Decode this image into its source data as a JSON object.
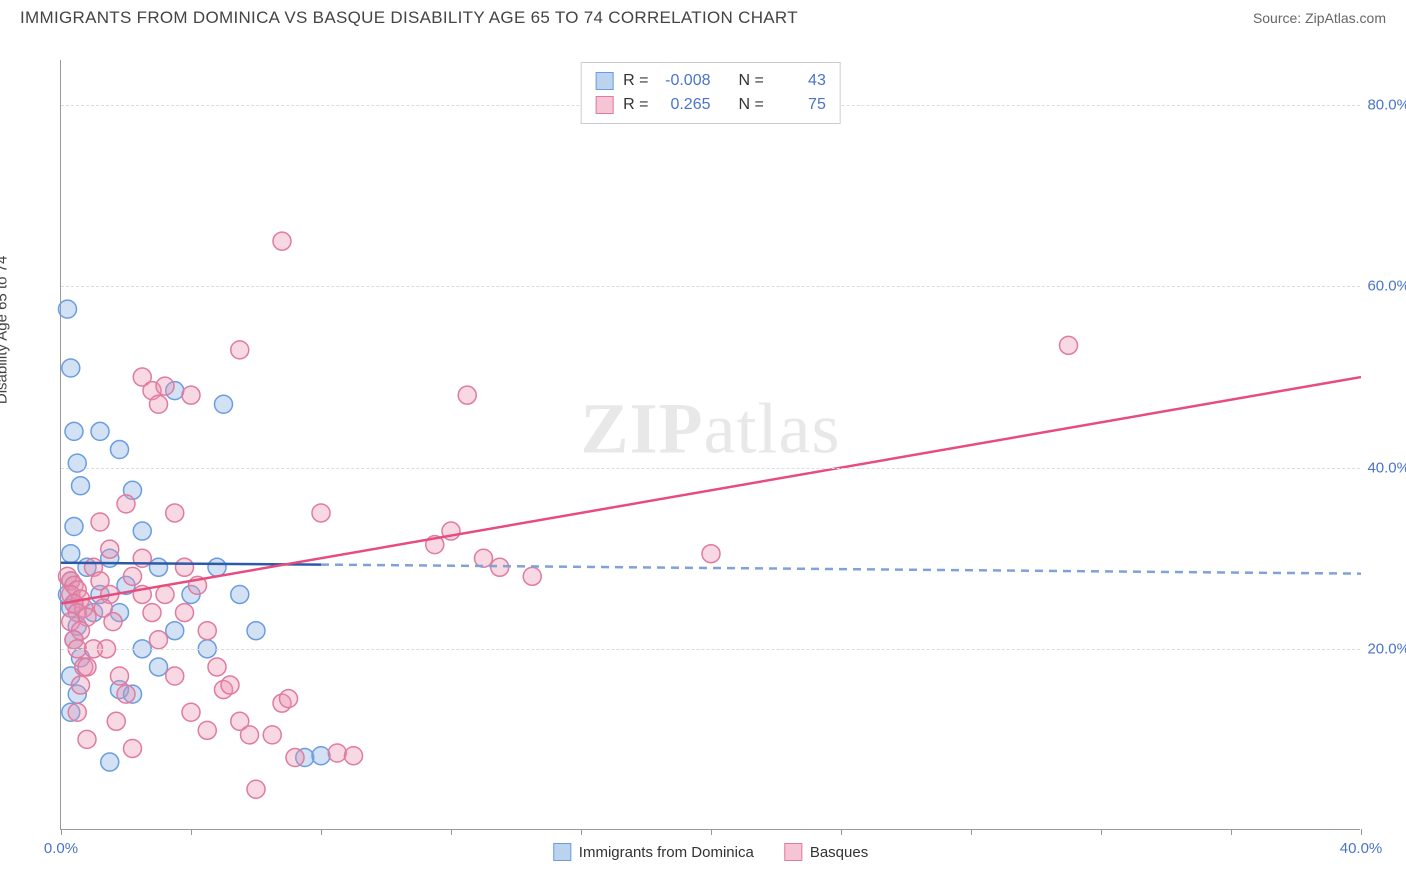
{
  "header": {
    "title": "IMMIGRANTS FROM DOMINICA VS BASQUE DISABILITY AGE 65 TO 74 CORRELATION CHART",
    "source_prefix": "Source: ",
    "source_name": "ZipAtlas.com"
  },
  "watermark": {
    "zip": "ZIP",
    "atlas": "atlas"
  },
  "chart": {
    "type": "scatter",
    "y_axis_label": "Disability Age 65 to 74",
    "xlim": [
      0,
      40
    ],
    "ylim": [
      0,
      85
    ],
    "x_ticks": [
      0,
      4,
      8,
      12,
      16,
      20,
      24,
      28,
      32,
      36,
      40
    ],
    "x_tick_labels": {
      "0": "0.0%",
      "40": "40.0%"
    },
    "y_gridlines": [
      20,
      40,
      60,
      80
    ],
    "y_tick_labels": {
      "20": "20.0%",
      "40": "40.0%",
      "60": "60.0%",
      "80": "80.0%"
    },
    "background_color": "#ffffff",
    "grid_color": "#dddddd",
    "axis_color": "#999999",
    "label_color": "#4a74c9",
    "marker_radius": 9,
    "marker_stroke_width": 1.5,
    "series": [
      {
        "name": "Immigrants from Dominica",
        "fill": "rgba(130,170,225,0.35)",
        "stroke": "#6a9de0",
        "swatch_fill": "#bcd3f0",
        "swatch_stroke": "#6a9de0",
        "R": "-0.008",
        "N": "43",
        "trend": {
          "solid": {
            "x1": 0,
            "y1": 29.5,
            "x2": 8,
            "y2": 29.3
          },
          "dashed": {
            "x1": 8,
            "y1": 29.3,
            "x2": 40,
            "y2": 28.3
          },
          "solid_color": "#2c5aa8",
          "dashed_color": "#7fa3d4",
          "width": 2.5
        },
        "points": [
          [
            0.2,
            57.5
          ],
          [
            0.3,
            51
          ],
          [
            0.4,
            44
          ],
          [
            0.5,
            40.5
          ],
          [
            0.6,
            38
          ],
          [
            0.4,
            33.5
          ],
          [
            0.3,
            30.5
          ],
          [
            0.8,
            29
          ],
          [
            0.3,
            27.5
          ],
          [
            0.2,
            26
          ],
          [
            0.4,
            25
          ],
          [
            0.3,
            24.5
          ],
          [
            1.0,
            24
          ],
          [
            0.5,
            22.5
          ],
          [
            0.4,
            21
          ],
          [
            0.6,
            19
          ],
          [
            0.3,
            17
          ],
          [
            0.5,
            15
          ],
          [
            1.8,
            15.5
          ],
          [
            0.3,
            13
          ],
          [
            1.5,
            7.5
          ],
          [
            1.2,
            44
          ],
          [
            1.8,
            42
          ],
          [
            2.2,
            37.5
          ],
          [
            2.5,
            33
          ],
          [
            1.5,
            30
          ],
          [
            2.0,
            27
          ],
          [
            1.2,
            26
          ],
          [
            1.8,
            24
          ],
          [
            2.5,
            20
          ],
          [
            3.0,
            18
          ],
          [
            2.2,
            15
          ],
          [
            3.5,
            48.5
          ],
          [
            3.0,
            29
          ],
          [
            4.0,
            26
          ],
          [
            3.5,
            22
          ],
          [
            4.5,
            20
          ],
          [
            5.0,
            47
          ],
          [
            4.8,
            29
          ],
          [
            5.5,
            26
          ],
          [
            6.0,
            22
          ],
          [
            7.5,
            8
          ],
          [
            8.0,
            8.2
          ]
        ]
      },
      {
        "name": "Basques",
        "fill": "rgba(235,145,175,0.35)",
        "stroke": "#e07ba0",
        "swatch_fill": "#f5c5d6",
        "swatch_stroke": "#e07ba0",
        "R": "0.265",
        "N": "75",
        "trend": {
          "solid": {
            "x1": 0,
            "y1": 25,
            "x2": 40,
            "y2": 50
          },
          "solid_color": "#e84b7e",
          "width": 2.5
        },
        "points": [
          [
            0.2,
            28
          ],
          [
            0.3,
            27.5
          ],
          [
            0.4,
            27
          ],
          [
            0.5,
            26.5
          ],
          [
            0.3,
            26
          ],
          [
            0.6,
            25.5
          ],
          [
            0.4,
            25
          ],
          [
            0.7,
            24.5
          ],
          [
            0.5,
            24
          ],
          [
            0.8,
            23.5
          ],
          [
            0.3,
            23
          ],
          [
            0.6,
            22
          ],
          [
            0.4,
            21
          ],
          [
            0.5,
            20
          ],
          [
            0.7,
            18
          ],
          [
            0.6,
            16
          ],
          [
            0.5,
            13
          ],
          [
            0.8,
            10
          ],
          [
            1.0,
            29
          ],
          [
            1.2,
            27.5
          ],
          [
            1.5,
            26
          ],
          [
            1.3,
            24.5
          ],
          [
            1.6,
            23
          ],
          [
            1.4,
            20
          ],
          [
            1.8,
            17
          ],
          [
            2.0,
            15
          ],
          [
            1.7,
            12
          ],
          [
            2.2,
            9
          ],
          [
            2.5,
            50
          ],
          [
            2.8,
            48.5
          ],
          [
            3.0,
            47
          ],
          [
            3.2,
            49
          ],
          [
            3.5,
            35
          ],
          [
            3.8,
            29
          ],
          [
            4.0,
            48
          ],
          [
            4.2,
            27
          ],
          [
            4.5,
            22
          ],
          [
            4.8,
            18
          ],
          [
            5.0,
            15.5
          ],
          [
            5.2,
            16
          ],
          [
            5.5,
            12
          ],
          [
            5.8,
            10.5
          ],
          [
            6.0,
            4.5
          ],
          [
            5.5,
            53
          ],
          [
            6.5,
            10.5
          ],
          [
            6.8,
            14
          ],
          [
            7.0,
            14.5
          ],
          [
            7.2,
            8
          ],
          [
            8.0,
            35
          ],
          [
            8.5,
            8.5
          ],
          [
            9.0,
            8.2
          ],
          [
            6.8,
            65
          ],
          [
            12.5,
            48
          ],
          [
            13.0,
            30
          ],
          [
            13.5,
            29
          ],
          [
            14.5,
            28
          ],
          [
            12.0,
            33
          ],
          [
            11.5,
            31.5
          ],
          [
            20.0,
            30.5
          ],
          [
            31.0,
            53.5
          ],
          [
            2.0,
            36
          ],
          [
            1.2,
            34
          ],
          [
            1.5,
            31
          ],
          [
            3.5,
            17
          ],
          [
            4.0,
            13
          ],
          [
            4.5,
            11
          ],
          [
            2.5,
            26
          ],
          [
            2.8,
            24
          ],
          [
            3.0,
            21
          ],
          [
            1.0,
            20
          ],
          [
            0.8,
            18
          ],
          [
            2.2,
            28
          ],
          [
            2.5,
            30
          ],
          [
            3.2,
            26
          ],
          [
            3.8,
            24
          ]
        ]
      }
    ],
    "stats_box": {
      "r_label": "R =",
      "n_label": "N ="
    },
    "bottom_legend": [
      {
        "label": "Immigrants from Dominica",
        "series_idx": 0
      },
      {
        "label": "Basques",
        "series_idx": 1
      }
    ]
  }
}
